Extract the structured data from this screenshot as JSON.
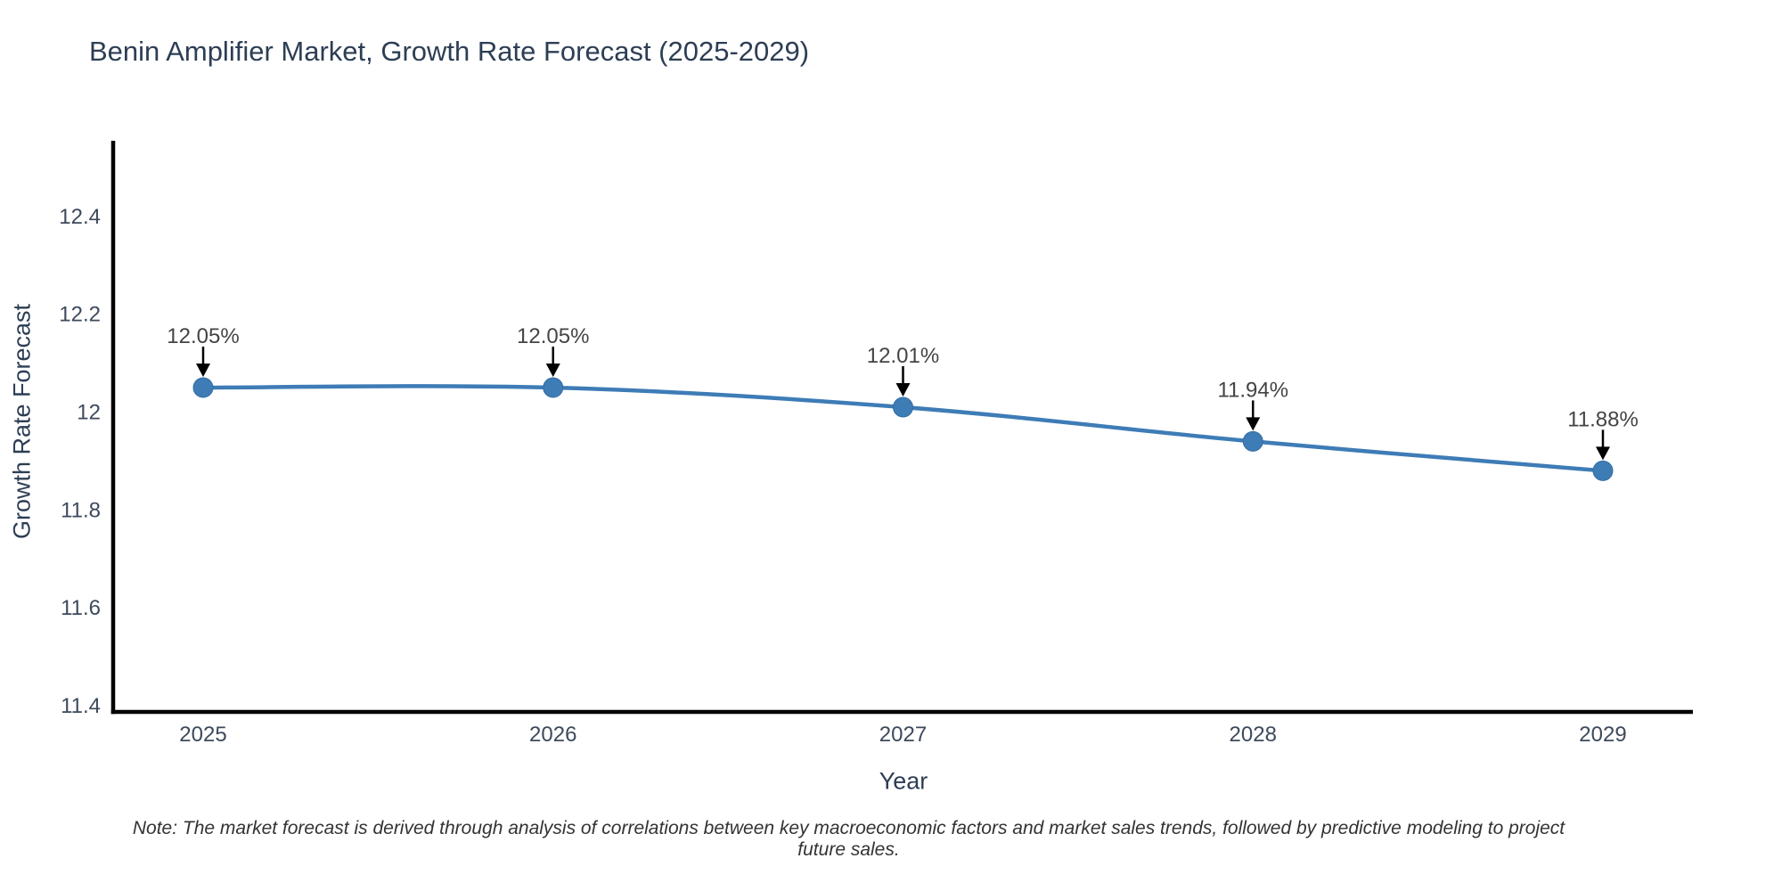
{
  "figure": {
    "background": "#ffffff"
  },
  "chart_data": {
    "type": "line",
    "title": "Benin Amplifier Market, Growth Rate Forecast (2025-2029)",
    "xlabel": "Year",
    "ylabel": "Growth Rate Forecast",
    "categories": [
      "2025",
      "2026",
      "2027",
      "2028",
      "2029"
    ],
    "series": [
      {
        "name": "Growth Rate Forecast",
        "values": [
          12.05,
          12.05,
          12.01,
          11.94,
          11.88
        ]
      }
    ],
    "point_labels": [
      "12.05%",
      "12.05%",
      "12.01%",
      "11.94%",
      "11.88%"
    ],
    "yticks": [
      11.4,
      11.6,
      11.8,
      12,
      12.2,
      12.4
    ],
    "ytick_labels": [
      "11.4",
      "11.6",
      "11.8",
      "12",
      "12.2",
      "12.4"
    ],
    "ylim": [
      11.387,
      12.551
    ],
    "grid": false,
    "legend_position": "none",
    "colors": {
      "line": "#3e7cb6",
      "marker": "#3e7cb6",
      "marker_edge": "#356da3",
      "axis_line": "#000000",
      "tick_label": "#3d4a5c",
      "annotation_text": "#444444",
      "annotation_arrow": "#000000",
      "title_text": "#2d3e54"
    }
  },
  "note": "Note: The market forecast is derived through analysis of correlations between key macroeconomic factors and market sales trends, followed by predictive modeling to project future sales."
}
